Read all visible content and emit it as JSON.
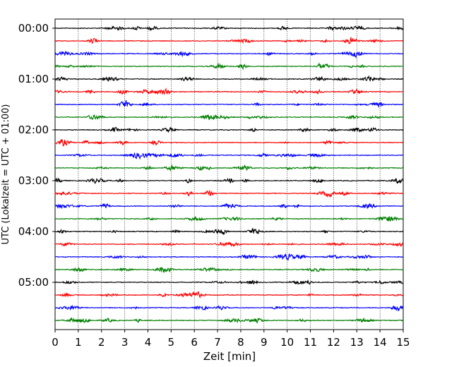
{
  "chart_data": {
    "type": "line",
    "title": "",
    "xlabel": "Zeit  [min]",
    "ylabel": "UTC (Lokalzeit = UTC + 01:00)",
    "xlim": [
      0,
      15
    ],
    "x_ticks": [
      "0",
      "1",
      "2",
      "3",
      "4",
      "5",
      "6",
      "7",
      "8",
      "9",
      "10",
      "11",
      "12",
      "13",
      "14",
      "15"
    ],
    "y_ticks": [
      "00:00",
      "01:00",
      "02:00",
      "03:00",
      "04:00",
      "05:00"
    ],
    "grid": "vertical dotted at each minute",
    "legend": "none",
    "trace_interval_minutes": 15,
    "trace_start": "00:00",
    "trace_count": 24,
    "trace_colors": [
      "#000000",
      "#ff0000",
      "#0000ff",
      "#007f00"
    ]
  }
}
